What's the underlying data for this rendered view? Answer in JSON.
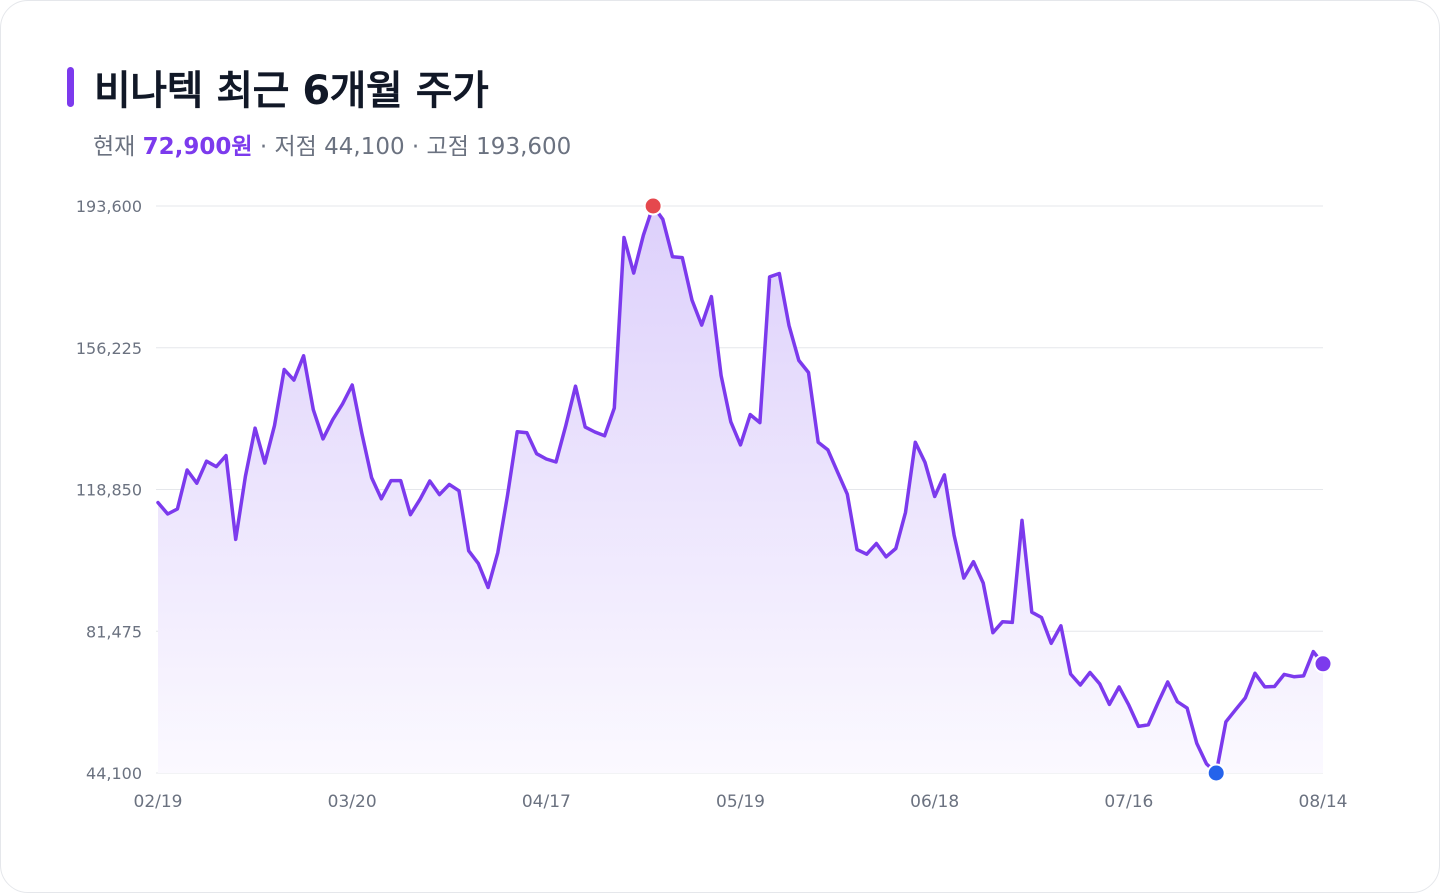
{
  "header": {
    "title": "비나텍 최근 6개월 주가",
    "current_label": "현재",
    "current_value": "72,900원",
    "low_text": " · 저점 44,100",
    "high_text": " · 고점 193,600"
  },
  "colors": {
    "line": "#7c3aed",
    "area_top": "#ddd0fb",
    "area_bottom": "#fbf9ff",
    "grid": "#e5e7eb",
    "high_marker": "#e5484d",
    "low_marker": "#2563eb",
    "last_marker": "#7c3aed"
  },
  "chart_data": {
    "type": "line",
    "title": "비나텍 최근 6개월 주가",
    "y_ticks": [
      "193,600",
      "156,225",
      "118,850",
      "81,475",
      "44,100"
    ],
    "x_ticks": [
      "02/19",
      "03/20",
      "04/17",
      "05/19",
      "06/18",
      "07/16",
      "08/14"
    ],
    "ylim": [
      44100,
      193600
    ],
    "grid": true,
    "markers": {
      "high": 193600,
      "low": 44100,
      "last": 72900
    },
    "series": [
      {
        "values": [
          115400,
          112400,
          113700,
          124000,
          120500,
          126300,
          124900,
          127800,
          105700,
          122300,
          135000,
          125800,
          135700,
          150500,
          147700,
          154100,
          139900,
          132200,
          137300,
          141400,
          146400,
          133600,
          122000,
          116400,
          121200,
          121200,
          112200,
          116300,
          121100,
          117500,
          120200,
          118500,
          102700,
          99300,
          93000,
          102200,
          117300,
          134100,
          133800,
          128300,
          126900,
          126100,
          135700,
          146100,
          135300,
          134000,
          133000,
          140300,
          185300,
          175900,
          185900,
          193600,
          190100,
          180200,
          180000,
          168800,
          162200,
          169700,
          148900,
          136700,
          130600,
          138600,
          136500,
          174900,
          175800,
          162100,
          152900,
          149700,
          131300,
          129300,
          123400,
          117600,
          103000,
          101800,
          104600,
          101100,
          103300,
          112800,
          131300,
          126000,
          117000,
          122700,
          106800,
          95500,
          99800,
          94200,
          81100,
          84000,
          83800,
          110700,
          86500,
          85100,
          78300,
          82900,
          70200,
          67300,
          70600,
          67600,
          62200,
          66800,
          62000,
          56400,
          56800,
          62600,
          68100,
          62900,
          61200,
          51900,
          46500,
          44100,
          57600,
          60800,
          63900,
          70400,
          66800,
          66900,
          70100,
          69500,
          69700,
          76100,
          72900
        ]
      }
    ]
  }
}
